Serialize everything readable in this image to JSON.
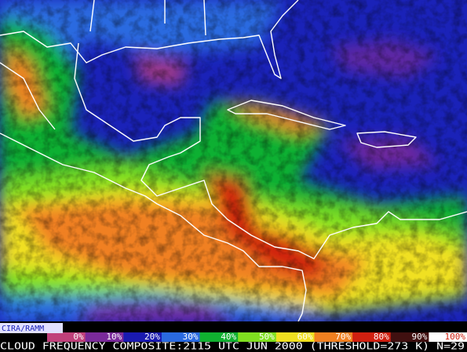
{
  "map": {
    "credit": "CIRA/RAMM",
    "caption": "CLOUD FREQUENCY COMPOSITE:2115 UTC JUN 2000 (THRESHOLD=273 K) N=29",
    "legend": [
      {
        "label": "0%",
        "color": "#c0407a"
      },
      {
        "label": "10%",
        "color": "#7a2a9a"
      },
      {
        "label": "20%",
        "color": "#1a1ab0"
      },
      {
        "label": "30%",
        "color": "#2a6ae0"
      },
      {
        "label": "40%",
        "color": "#10b030"
      },
      {
        "label": "50%",
        "color": "#80e020"
      },
      {
        "label": "60%",
        "color": "#f0e020"
      },
      {
        "label": "70%",
        "color": "#f08020"
      },
      {
        "label": "80%",
        "color": "#d02010"
      },
      {
        "label": "90%",
        "color": "#401010"
      },
      {
        "label": "100%",
        "color": "#ffffff"
      }
    ]
  }
}
